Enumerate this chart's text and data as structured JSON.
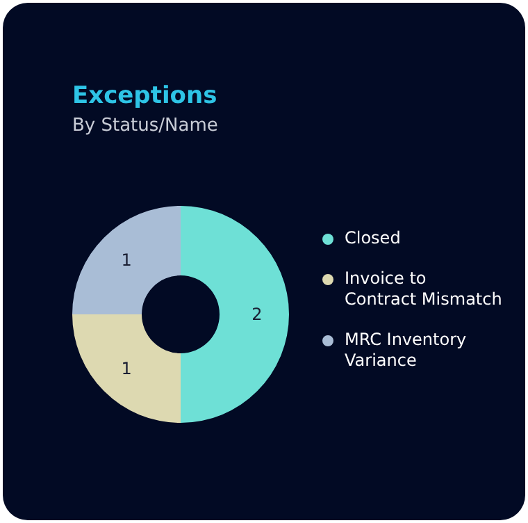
{
  "chart_data": {
    "type": "donut",
    "title": "Exceptions",
    "subtitle": "By Status/Name",
    "categories": [
      "Closed",
      "Invoice to Contract Mismatch",
      "MRC Inventory Variance"
    ],
    "values": [
      2,
      1,
      1
    ],
    "colors": [
      "#6ee0d6",
      "#ddd9b1",
      "#a9bdd6"
    ],
    "data_labels": true,
    "legend": "right"
  }
}
